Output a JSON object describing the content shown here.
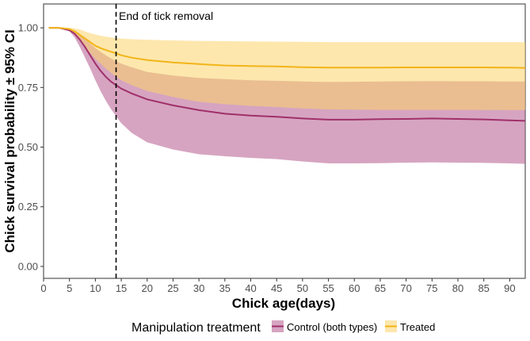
{
  "chart_data": {
    "type": "line",
    "title": "",
    "xlabel": "Chick age(days)",
    "ylabel": "Chick survival probability ± 95% CI",
    "xlim": [
      0,
      93
    ],
    "ylim": [
      -0.05,
      1.1
    ],
    "xticks": [
      0,
      5,
      10,
      15,
      20,
      25,
      30,
      35,
      40,
      45,
      50,
      55,
      60,
      65,
      70,
      75,
      80,
      85,
      90
    ],
    "yticks": [
      0.0,
      0.25,
      0.5,
      0.75,
      1.0
    ],
    "ytick_labels": [
      "0.00",
      "0.25",
      "0.50",
      "0.75",
      "1.00"
    ],
    "grid": false,
    "vline": {
      "x": 14,
      "style": "dashed",
      "label": "End of tick removal"
    },
    "legend": {
      "title": "Manipulation treatment",
      "position": "bottom",
      "entries": [
        "Control (both types)",
        "Treated"
      ]
    },
    "series": [
      {
        "name": "Control (both types)",
        "line_color": "#a0306a",
        "fill_color": "#b55a8e",
        "x": [
          1,
          3,
          5,
          6,
          7,
          8,
          9,
          10,
          11,
          12,
          13,
          14,
          15,
          17,
          20,
          25,
          30,
          35,
          40,
          45,
          50,
          55,
          60,
          65,
          70,
          75,
          80,
          85,
          90,
          93
        ],
        "mean": [
          1.0,
          1.0,
          0.99,
          0.975,
          0.95,
          0.92,
          0.885,
          0.85,
          0.82,
          0.795,
          0.775,
          0.76,
          0.745,
          0.725,
          0.7,
          0.675,
          0.655,
          0.64,
          0.632,
          0.627,
          0.62,
          0.615,
          0.615,
          0.617,
          0.618,
          0.62,
          0.618,
          0.616,
          0.612,
          0.61
        ],
        "lower": [
          1.0,
          1.0,
          0.985,
          0.96,
          0.92,
          0.875,
          0.83,
          0.78,
          0.735,
          0.695,
          0.66,
          0.63,
          0.6,
          0.56,
          0.52,
          0.49,
          0.47,
          0.462,
          0.455,
          0.45,
          0.44,
          0.432,
          0.432,
          0.433,
          0.435,
          0.436,
          0.435,
          0.434,
          0.432,
          0.43
        ],
        "upper": [
          1.0,
          1.0,
          0.995,
          0.99,
          0.975,
          0.955,
          0.935,
          0.915,
          0.9,
          0.885,
          0.872,
          0.86,
          0.85,
          0.835,
          0.815,
          0.8,
          0.79,
          0.785,
          0.78,
          0.778,
          0.775,
          0.773,
          0.774,
          0.775,
          0.776,
          0.777,
          0.776,
          0.776,
          0.775,
          0.775
        ]
      },
      {
        "name": "Treated",
        "line_color": "#f2b418",
        "fill_color": "#fbd46a",
        "x": [
          1,
          3,
          5,
          6,
          7,
          8,
          9,
          10,
          11,
          12,
          13,
          14,
          15,
          17,
          20,
          25,
          30,
          35,
          40,
          45,
          50,
          55,
          60,
          65,
          70,
          75,
          80,
          85,
          90,
          93
        ],
        "mean": [
          1.0,
          1.0,
          0.995,
          0.985,
          0.97,
          0.955,
          0.94,
          0.925,
          0.915,
          0.907,
          0.9,
          0.893,
          0.885,
          0.875,
          0.865,
          0.855,
          0.848,
          0.842,
          0.84,
          0.838,
          0.835,
          0.833,
          0.833,
          0.833,
          0.834,
          0.834,
          0.834,
          0.834,
          0.833,
          0.832
        ],
        "lower": [
          1.0,
          1.0,
          0.99,
          0.97,
          0.945,
          0.92,
          0.895,
          0.87,
          0.85,
          0.83,
          0.812,
          0.795,
          0.78,
          0.76,
          0.735,
          0.71,
          0.69,
          0.68,
          0.673,
          0.668,
          0.662,
          0.658,
          0.657,
          0.656,
          0.656,
          0.656,
          0.656,
          0.656,
          0.655,
          0.655
        ],
        "upper": [
          1.0,
          1.0,
          1.0,
          0.998,
          0.993,
          0.985,
          0.978,
          0.972,
          0.967,
          0.963,
          0.96,
          0.957,
          0.955,
          0.952,
          0.95,
          0.947,
          0.945,
          0.944,
          0.943,
          0.942,
          0.941,
          0.94,
          0.94,
          0.94,
          0.94,
          0.94,
          0.94,
          0.94,
          0.94,
          0.94
        ]
      }
    ]
  }
}
